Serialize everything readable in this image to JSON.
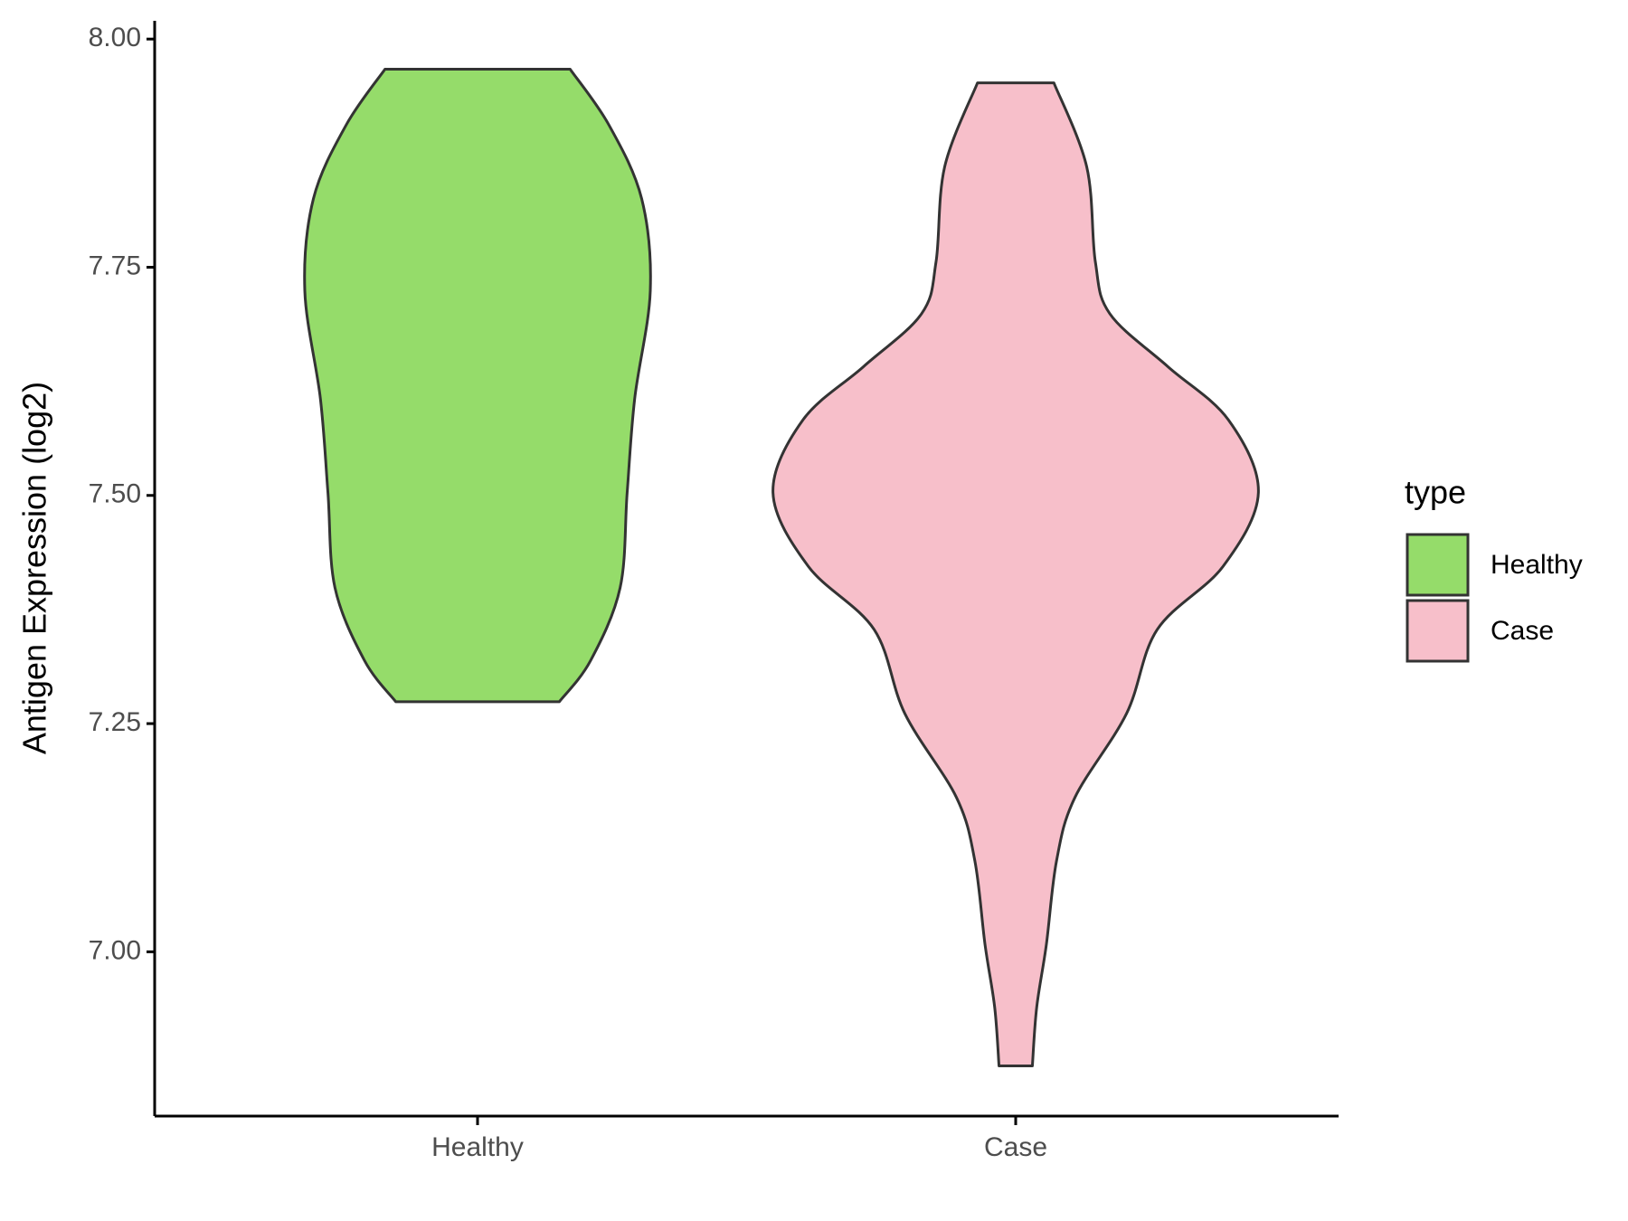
{
  "chart_data": {
    "type": "violin",
    "y_label": "Antigen Expression (log2)",
    "categories": [
      "Healthy",
      "Case"
    ],
    "legend_title": "type",
    "legend": "right",
    "series": [
      {
        "name": "Healthy",
        "color": "#95DC6A",
        "y": [
          7.967,
          7.906,
          7.825,
          7.724,
          7.606,
          7.503,
          7.399,
          7.319,
          7.274
        ],
        "width": [
          0.172,
          0.244,
          0.305,
          0.321,
          0.292,
          0.278,
          0.265,
          0.21,
          0.152
        ]
      },
      {
        "name": "Case",
        "color": "#F7BFCA",
        "y": [
          7.952,
          7.86,
          7.756,
          7.699,
          7.641,
          7.583,
          7.503,
          7.422,
          7.353,
          7.261,
          7.169,
          7.1,
          7.008,
          6.939,
          6.875
        ],
        "width": [
          0.071,
          0.132,
          0.148,
          0.175,
          0.283,
          0.395,
          0.451,
          0.385,
          0.263,
          0.206,
          0.11,
          0.076,
          0.057,
          0.039,
          0.031
        ]
      }
    ],
    "ylim": [
      6.82,
      8.02
    ],
    "yticks": [
      {
        "value": 7,
        "label": "7.00"
      },
      {
        "value": 7.25,
        "label": "7.25"
      },
      {
        "value": 7.5,
        "label": "7.50"
      },
      {
        "value": 7.75,
        "label": "7.75"
      },
      {
        "value": 8,
        "label": "8.00"
      }
    ]
  }
}
